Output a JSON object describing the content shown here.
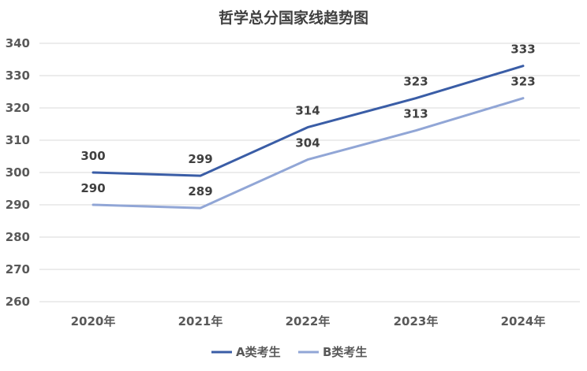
{
  "chart_data": {
    "type": "line",
    "title": "哲学总分国家线趋势图",
    "xlabel": "",
    "ylabel": "",
    "categories": [
      "2020年",
      "2021年",
      "2022年",
      "2023年",
      "2024年"
    ],
    "ylim": [
      260,
      340
    ],
    "yticks": [
      260,
      270,
      280,
      290,
      300,
      310,
      320,
      330,
      340
    ],
    "grid": true,
    "legend_position": "bottom",
    "series": [
      {
        "name": "A类考生",
        "values": [
          300,
          299,
          314,
          323,
          333
        ],
        "color": "#3a5da6"
      },
      {
        "name": "B类考生",
        "values": [
          290,
          289,
          304,
          313,
          323
        ],
        "color": "#91a6d6"
      }
    ]
  }
}
